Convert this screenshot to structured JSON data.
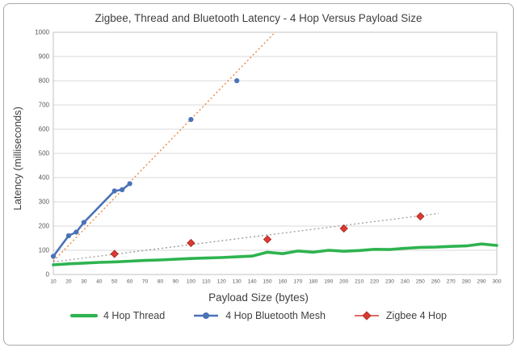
{
  "chart_data": {
    "type": "line",
    "title": "Zigbee, Thread and Bluetooth Latency - 4 Hop Versus Payload Size",
    "xlabel": "Payload Size (bytes)",
    "ylabel": "Latency (milliseconds)",
    "xlim": [
      10,
      300
    ],
    "ylim": [
      0,
      1000
    ],
    "x_ticks": [
      10,
      20,
      30,
      40,
      50,
      60,
      70,
      80,
      90,
      100,
      110,
      120,
      130,
      140,
      150,
      160,
      170,
      180,
      190,
      200,
      210,
      220,
      230,
      240,
      250,
      260,
      270,
      280,
      290,
      300
    ],
    "y_ticks": [
      0,
      100,
      200,
      300,
      400,
      500,
      600,
      700,
      800,
      900,
      1000
    ],
    "grid": "horizontal",
    "legend_position": "bottom",
    "series": [
      {
        "name": "4 Hop Thread",
        "color": "#2eb34f",
        "style": "solid-line",
        "x": [
          10,
          20,
          30,
          40,
          50,
          60,
          70,
          80,
          90,
          100,
          110,
          120,
          130,
          140,
          150,
          160,
          170,
          180,
          190,
          200,
          210,
          220,
          230,
          240,
          250,
          260,
          270,
          280,
          290,
          300
        ],
        "y": [
          40,
          44,
          47,
          50,
          52,
          55,
          58,
          60,
          63,
          66,
          68,
          70,
          73,
          76,
          92,
          86,
          97,
          92,
          100,
          96,
          99,
          104,
          103,
          108,
          112,
          113,
          116,
          118,
          126,
          120
        ]
      },
      {
        "name": "4 Hop Bluetooth Mesh",
        "color": "#4a72b8",
        "style": "line-circle-markers",
        "connect_until_x": 60,
        "x": [
          10,
          20,
          25,
          30,
          50,
          55,
          60,
          100,
          130
        ],
        "y": [
          75,
          160,
          175,
          215,
          345,
          350,
          375,
          640,
          800
        ],
        "trendline": {
          "color": "#ed7d31",
          "style": "dotted",
          "x1": 10,
          "y1": 55,
          "x2": 155,
          "y2": 1000
        }
      },
      {
        "name": "Zigbee 4 Hop",
        "color": "#d93a32",
        "style": "diamond-markers",
        "x": [
          50,
          100,
          150,
          200,
          250
        ],
        "y": [
          85,
          130,
          145,
          190,
          240
        ],
        "trendline": {
          "color": "#9b9b9b",
          "style": "dotted",
          "x1": 10,
          "y1": 52,
          "x2": 262,
          "y2": 252
        }
      }
    ]
  }
}
